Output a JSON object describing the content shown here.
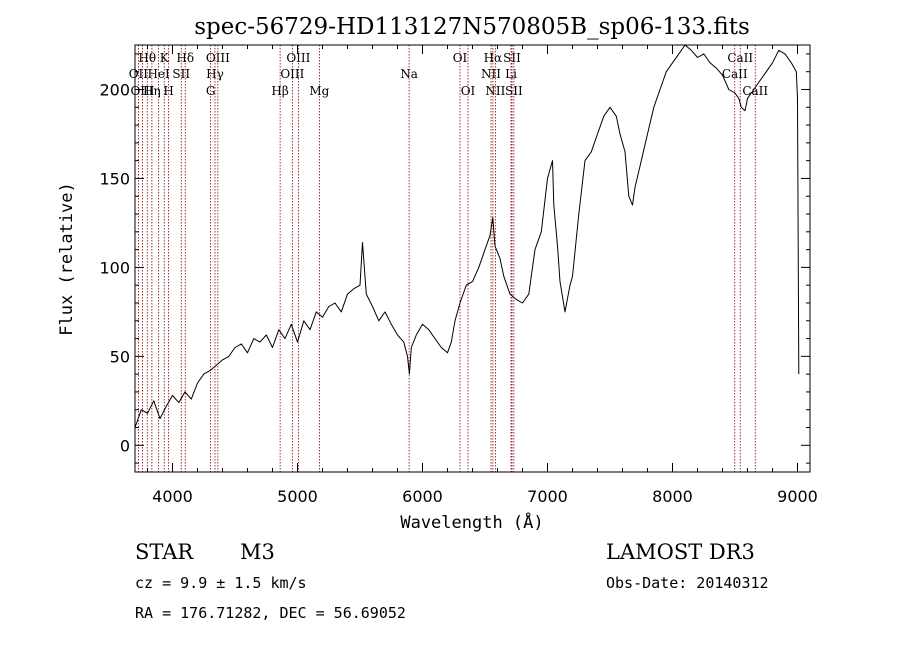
{
  "chart_data": {
    "type": "line",
    "title": "spec-56729-HD113127N570805B_sp06-133.fits",
    "xlabel": "Wavelength (Å)",
    "ylabel": "Flux (relative)",
    "xlim": [
      3700,
      9100
    ],
    "ylim": [
      -15,
      225
    ],
    "xticks": [
      4000,
      5000,
      6000,
      7000,
      8000,
      9000
    ],
    "yticks": [
      0,
      50,
      100,
      150,
      200
    ],
    "xtick_labels": [
      "4000",
      "5000",
      "6000",
      "7000",
      "8000",
      "9000"
    ],
    "ytick_labels": [
      "0",
      "50",
      "100",
      "150",
      "200"
    ],
    "grid": false,
    "legend": "none",
    "series": [
      {
        "name": "flux",
        "x": [
          3700,
          3750,
          3800,
          3850,
          3900,
          3950,
          4000,
          4050,
          4100,
          4150,
          4200,
          4250,
          4300,
          4350,
          4400,
          4450,
          4500,
          4550,
          4600,
          4650,
          4700,
          4750,
          4800,
          4850,
          4900,
          4950,
          5000,
          5050,
          5100,
          5150,
          5200,
          5250,
          5300,
          5350,
          5400,
          5450,
          5500,
          5520,
          5550,
          5600,
          5650,
          5700,
          5750,
          5800,
          5850,
          5880,
          5895,
          5910,
          5950,
          6000,
          6050,
          6100,
          6150,
          6200,
          6230,
          6260,
          6300,
          6350,
          6400,
          6450,
          6500,
          6540,
          6562,
          6580,
          6620,
          6650,
          6700,
          6750,
          6800,
          6850,
          6900,
          6950,
          7000,
          7040,
          7050,
          7080,
          7100,
          7140,
          7180,
          7200,
          7250,
          7300,
          7350,
          7400,
          7450,
          7500,
          7550,
          7580,
          7620,
          7650,
          7680,
          7700,
          7750,
          7800,
          7850,
          7900,
          7950,
          8000,
          8050,
          8100,
          8150,
          8200,
          8250,
          8300,
          8350,
          8400,
          8450,
          8500,
          8530,
          8550,
          8580,
          8600,
          8650,
          8700,
          8750,
          8800,
          8850,
          8900,
          8950,
          8990,
          9000,
          9010
        ],
        "y": [
          10,
          20,
          18,
          25,
          15,
          22,
          28,
          24,
          30,
          26,
          35,
          40,
          42,
          45,
          48,
          50,
          55,
          57,
          52,
          60,
          58,
          62,
          55,
          65,
          60,
          68,
          58,
          70,
          65,
          75,
          72,
          78,
          80,
          75,
          85,
          88,
          90,
          114,
          85,
          78,
          70,
          75,
          68,
          62,
          58,
          50,
          40,
          55,
          62,
          68,
          65,
          60,
          55,
          52,
          58,
          70,
          80,
          90,
          92,
          100,
          110,
          118,
          128,
          112,
          105,
          95,
          85,
          82,
          80,
          85,
          110,
          120,
          150,
          160,
          135,
          112,
          92,
          75,
          90,
          95,
          130,
          160,
          165,
          175,
          185,
          190,
          185,
          175,
          165,
          140,
          135,
          145,
          160,
          175,
          190,
          200,
          210,
          215,
          220,
          225,
          222,
          218,
          220,
          215,
          212,
          208,
          200,
          198,
          195,
          190,
          188,
          195,
          200,
          205,
          210,
          215,
          222,
          220,
          215,
          210,
          195,
          40
        ]
      }
    ],
    "annotations": [
      {
        "label": "Hθ",
        "x": 3798,
        "row": 1
      },
      {
        "label": "OII",
        "x": 3727,
        "row": 2
      },
      {
        "label": "OIII",
        "x": 3760,
        "row": 3
      },
      {
        "label": "K",
        "x": 3934,
        "row": 1
      },
      {
        "label": "HeI",
        "x": 3889,
        "row": 2
      },
      {
        "label": "Hη",
        "x": 3835,
        "row": 3
      },
      {
        "label": "H",
        "x": 3969,
        "row": 3
      },
      {
        "label": "Hδ",
        "x": 4102,
        "row": 1
      },
      {
        "label": "SII",
        "x": 4070,
        "row": 2
      },
      {
        "label": "OIII",
        "x": 4363,
        "row": 1
      },
      {
        "label": "Hγ",
        "x": 4340,
        "row": 2
      },
      {
        "label": "G",
        "x": 4305,
        "row": 3
      },
      {
        "label": "OIII",
        "x": 5007,
        "row": 1
      },
      {
        "label": "OIII",
        "x": 4959,
        "row": 2
      },
      {
        "label": "Hβ",
        "x": 4861,
        "row": 3
      },
      {
        "label": "Mg",
        "x": 5175,
        "row": 3
      },
      {
        "label": "Na",
        "x": 5893,
        "row": 2
      },
      {
        "label": "OI",
        "x": 6300,
        "row": 1
      },
      {
        "label": "OI",
        "x": 6364,
        "row": 3
      },
      {
        "label": "Hα",
        "x": 6563,
        "row": 1
      },
      {
        "label": "NII",
        "x": 6548,
        "row": 2
      },
      {
        "label": "NII",
        "x": 6583,
        "row": 3
      },
      {
        "label": "SII",
        "x": 6716,
        "row": 1
      },
      {
        "label": "Li",
        "x": 6708,
        "row": 2
      },
      {
        "label": "SII",
        "x": 6731,
        "row": 3
      },
      {
        "label": "CaII",
        "x": 8542,
        "row": 1
      },
      {
        "label": "CaII",
        "x": 8498,
        "row": 2
      },
      {
        "label": "CaII",
        "x": 8662,
        "row": 3
      }
    ],
    "line_color": "#000000",
    "marker_color": "#8b0000"
  },
  "info": {
    "object_class": "STAR",
    "subclass": "M3",
    "survey": "LAMOST DR3",
    "cz": "cz = 9.9 ± 1.5 km/s",
    "obs_date": "Obs-Date: 20140312",
    "coords": "RA = 176.71282, DEC =  56.69052"
  }
}
